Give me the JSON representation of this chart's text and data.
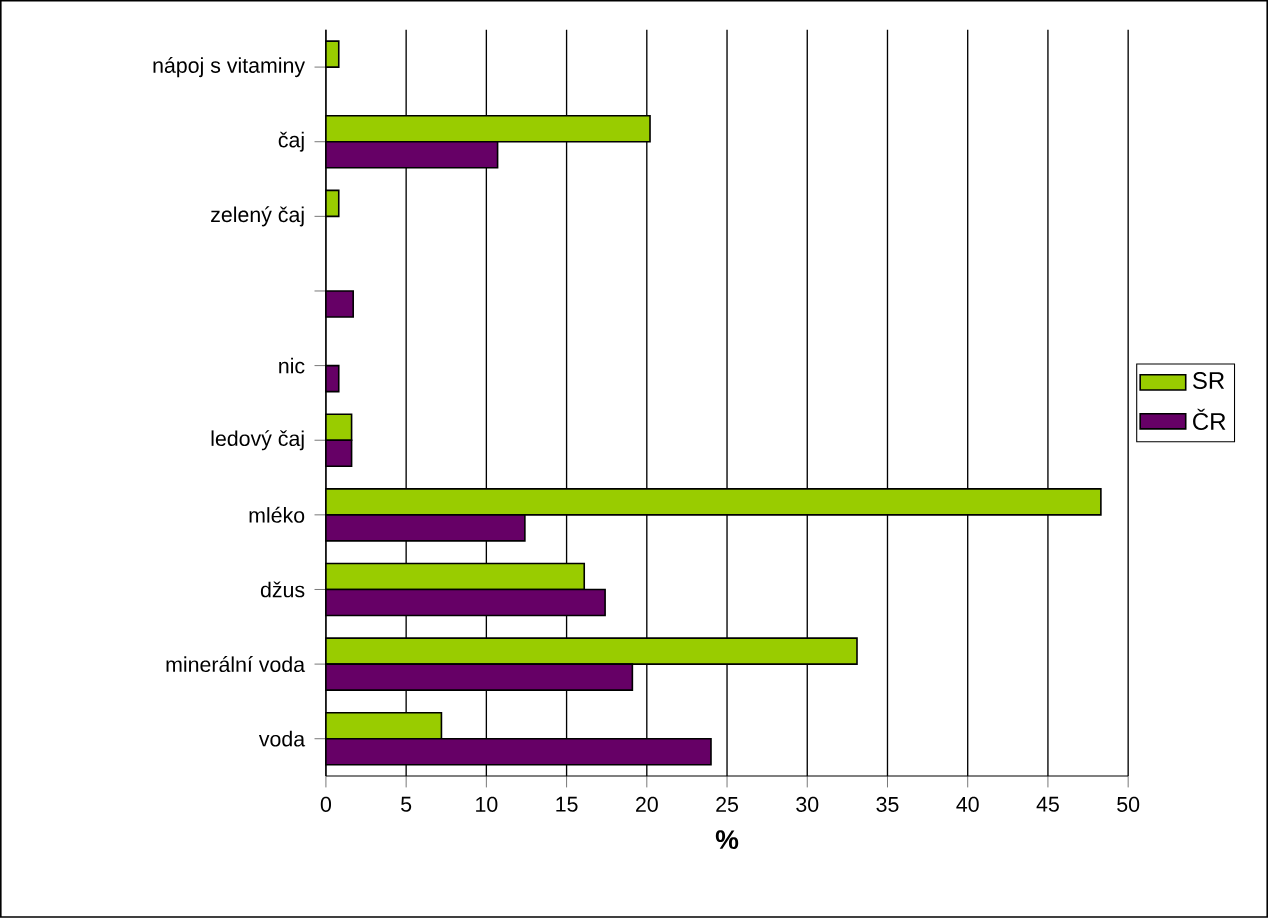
{
  "chart_data": {
    "type": "bar",
    "orientation": "horizontal",
    "xlabel": "%",
    "categories": [
      "nápoj s vitaminy",
      "čaj",
      "zelený čaj",
      null,
      "nic",
      "ledový čaj",
      "mléko",
      "džus",
      "minerální voda",
      "voda"
    ],
    "series": [
      {
        "name": "SR",
        "color": "#99cc00",
        "values": [
          0.8,
          20.2,
          0.8,
          null,
          null,
          1.6,
          48.3,
          16.1,
          33.1,
          7.2
        ]
      },
      {
        "name": "ČR",
        "color": "#660066",
        "values": [
          null,
          10.7,
          null,
          1.7,
          0.8,
          1.6,
          12.4,
          17.4,
          19.1,
          24.0
        ]
      }
    ],
    "xlim": [
      0,
      50
    ],
    "xticks": [
      0,
      5,
      10,
      15,
      20,
      25,
      30,
      35,
      40,
      45,
      50
    ],
    "grid": "x",
    "legend": "right"
  }
}
